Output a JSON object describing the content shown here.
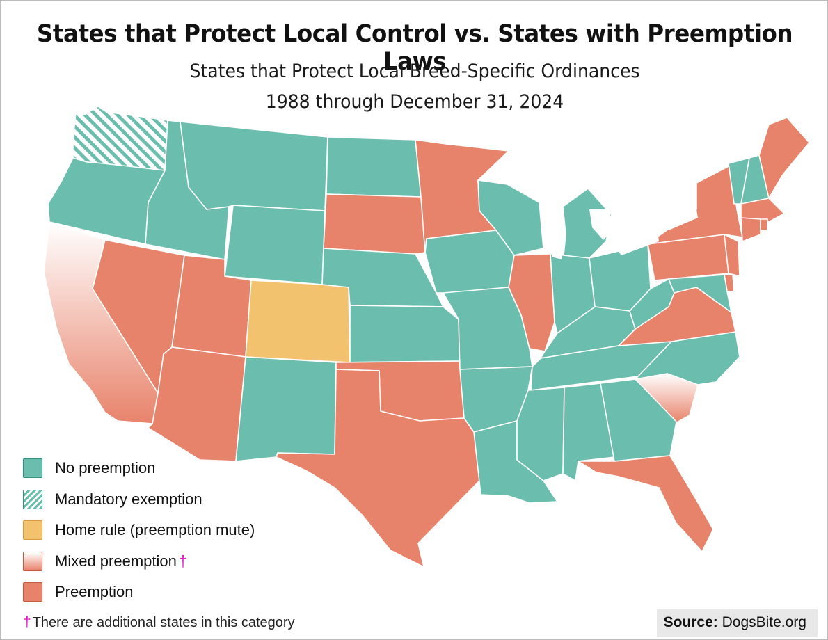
{
  "title": "States that Protect Local Control vs. States with Preemption Laws",
  "subtitle_line1": "States that Protect Local Breed-Specific Ordinances",
  "subtitle_line2": "1988 through December 31, 2024",
  "colors": {
    "no_preemption": "#6bbdae",
    "preemption": "#e8836b",
    "home_rule": "#f3c26f",
    "mixed_top": "#ffffff",
    "border": "#ffffff"
  },
  "legend": [
    {
      "key": "no_preemption",
      "label": "No preemption"
    },
    {
      "key": "mandatory_exemption",
      "label": "Mandatory exemption"
    },
    {
      "key": "home_rule",
      "label": "Home rule (preemption mute)"
    },
    {
      "key": "mixed_preemption",
      "label": "Mixed preemption",
      "mark": "†"
    },
    {
      "key": "preemption",
      "label": "Preemption"
    }
  ],
  "footnote": {
    "mark": "†",
    "text": "There are additional states in this category"
  },
  "source": {
    "label": "Source:",
    "value": "DogsBite.org"
  },
  "states": {
    "WA": "mandatory_exemption",
    "OR": "no_preemption",
    "CA": "mixed_preemption",
    "ID": "no_preemption",
    "NV": "preemption",
    "MT": "no_preemption",
    "WY": "no_preemption",
    "UT": "preemption",
    "AZ": "preemption",
    "CO": "home_rule",
    "NM": "no_preemption",
    "ND": "no_preemption",
    "SD": "preemption",
    "NE": "no_preemption",
    "KS": "no_preemption",
    "OK": "preemption",
    "TX": "preemption",
    "MN": "preemption",
    "IA": "no_preemption",
    "MO": "no_preemption",
    "AR": "no_preemption",
    "LA": "no_preemption",
    "WI": "no_preemption",
    "IL": "preemption",
    "MI": "no_preemption",
    "IN": "no_preemption",
    "OH": "no_preemption",
    "KY": "no_preemption",
    "TN": "no_preemption",
    "MS": "no_preemption",
    "AL": "no_preemption",
    "GA": "no_preemption",
    "FL": "preemption",
    "SC": "mixed_preemption",
    "NC": "no_preemption",
    "VA": "preemption",
    "WV": "no_preemption",
    "PA": "preemption",
    "NY": "preemption",
    "VT": "no_preemption",
    "NH": "no_preemption",
    "ME": "preemption",
    "MA": "preemption",
    "RI": "preemption",
    "CT": "preemption",
    "NJ": "preemption",
    "DE": "preemption",
    "MD": "no_preemption"
  }
}
